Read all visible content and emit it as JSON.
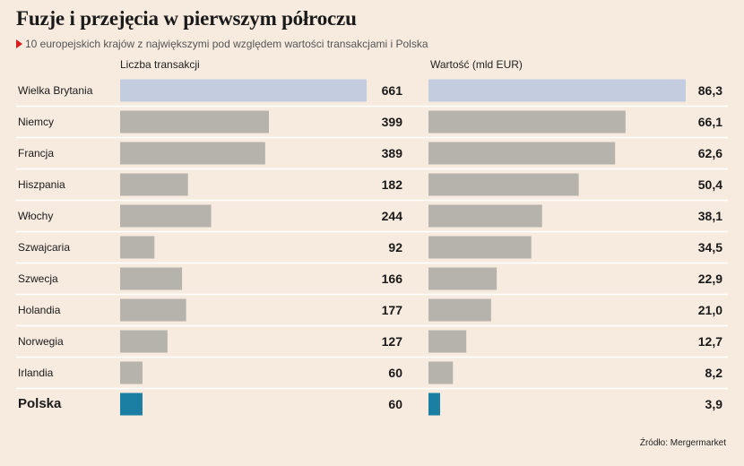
{
  "title": "Fuzje i przejęcia w pierwszym półroczu",
  "subtitle": "10 europejskich krajów z największymi pod względem wartości transakcjami i Polska",
  "source": "Źródło: Mergermarket",
  "colors": {
    "background": "#f7ebdf",
    "bar_default": "#b5b3ab",
    "bar_highlight_top": "#c3cddf",
    "bar_poland": "#1b7fa3",
    "subtitle_marker": "#d61c1c",
    "row_separator": "#ffffff"
  },
  "chart_data": [
    {
      "type": "bar",
      "orientation": "horizontal",
      "title": "Liczba transakcji",
      "categories": [
        "Wielka Brytania",
        "Niemcy",
        "Francja",
        "Hiszpania",
        "Włochy",
        "Szwajcaria",
        "Szwecja",
        "Holandia",
        "Norwegia",
        "Irlandia",
        "Polska"
      ],
      "values": [
        661,
        399,
        389,
        182,
        244,
        92,
        166,
        177,
        127,
        60,
        60
      ],
      "value_labels": [
        "661",
        "399",
        "389",
        "182",
        "244",
        "92",
        "166",
        "177",
        "127",
        "60",
        "60"
      ],
      "xlim": [
        0,
        661
      ]
    },
    {
      "type": "bar",
      "orientation": "horizontal",
      "title": "Wartość (mld EUR)",
      "categories": [
        "Wielka Brytania",
        "Niemcy",
        "Francja",
        "Hiszpania",
        "Włochy",
        "Szwajcaria",
        "Szwecja",
        "Holandia",
        "Norwegia",
        "Irlandia",
        "Polska"
      ],
      "values": [
        86.3,
        66.1,
        62.6,
        50.4,
        38.1,
        34.5,
        22.9,
        21.0,
        12.7,
        8.2,
        3.9
      ],
      "value_labels": [
        "86,3",
        "66,1",
        "62,6",
        "50,4",
        "38,1",
        "34,5",
        "22,9",
        "21,0",
        "12,7",
        "8,2",
        "3,9"
      ],
      "xlim": [
        0,
        86.3
      ]
    }
  ]
}
